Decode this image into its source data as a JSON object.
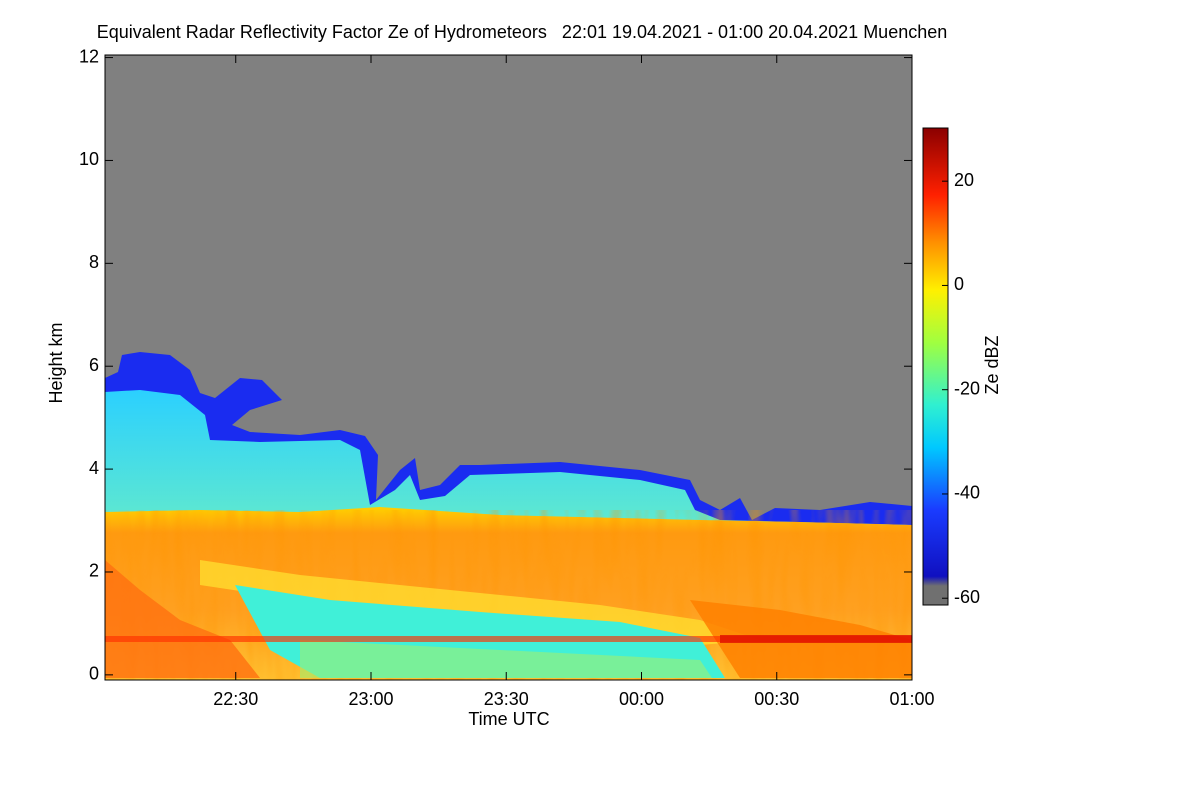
{
  "chart_data": {
    "type": "heatmap",
    "title": "Equivalent Radar Reflectivity Factor Ze of Hydrometeors   22:01 19.04.2021 - 01:00 20.04.2021 Muenchen",
    "x_label": "Time UTC",
    "y_label": "Height km",
    "colorbar_label": "Ze dBZ",
    "xlim": [
      22.0167,
      25
    ],
    "xticks": [
      {
        "value": 22.5,
        "label": "22:30"
      },
      {
        "value": 23,
        "label": "23:00"
      },
      {
        "value": 23.5,
        "label": "23:30"
      },
      {
        "value": 24,
        "label": "00:00"
      },
      {
        "value": 24.5,
        "label": "00:30"
      },
      {
        "value": 25,
        "label": "01:00"
      }
    ],
    "ylim": [
      -0.1,
      12.05
    ],
    "yticks": [
      0,
      2,
      4,
      6,
      8,
      10,
      12
    ],
    "clim": [
      -61.3,
      30.2
    ],
    "cticks": [
      20,
      0,
      -20,
      -40,
      -60
    ]
  }
}
